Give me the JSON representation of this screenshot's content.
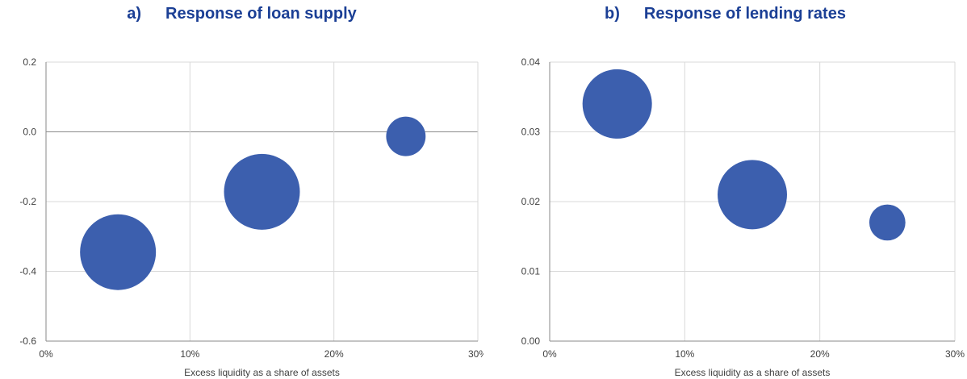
{
  "chart_data": [
    {
      "type": "scatter",
      "label": "a)",
      "title": "Response of loan supply",
      "xlabel": "Excess liquidity as a share of assets",
      "ylabel": "",
      "xlim": [
        0,
        30
      ],
      "ylim": [
        -0.6,
        0.2
      ],
      "xticks": [
        "0%",
        "10%",
        "20%",
        "30%"
      ],
      "yticks": [
        "-0.6",
        "-0.4",
        "-0.2",
        "0.0",
        "0.2"
      ],
      "grid": true,
      "color": "#3c5fae",
      "points": [
        {
          "x": 5,
          "y": -0.345,
          "size": 1.0
        },
        {
          "x": 15,
          "y": -0.172,
          "size": 1.0
        },
        {
          "x": 25,
          "y": -0.013,
          "size": 0.52
        }
      ]
    },
    {
      "type": "scatter",
      "label": "b)",
      "title": "Response of lending rates",
      "xlabel": "Excess liquidity as a share of assets",
      "ylabel": "",
      "xlim": [
        0,
        30
      ],
      "ylim": [
        0.0,
        0.04
      ],
      "xticks": [
        "0%",
        "10%",
        "20%",
        "30%"
      ],
      "yticks": [
        "0.00",
        "0.01",
        "0.02",
        "0.03",
        "0.04"
      ],
      "grid": true,
      "color": "#3c5fae",
      "points": [
        {
          "x": 5,
          "y": 0.034,
          "size": 1.0
        },
        {
          "x": 15,
          "y": 0.021,
          "size": 1.0
        },
        {
          "x": 25,
          "y": 0.017,
          "size": 0.52
        }
      ]
    }
  ]
}
